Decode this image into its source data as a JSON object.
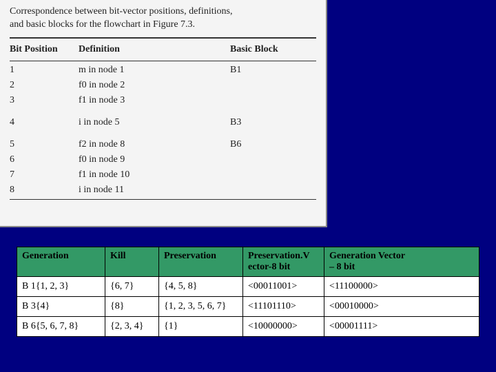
{
  "scan": {
    "title_line1": "Correspondence between bit-vector positions, definitions,",
    "title_line2": "and basic blocks for the flowchart in Figure 7.3.",
    "headers": {
      "bit": "Bit Position",
      "def": "Definition",
      "bb": "Basic Block"
    },
    "rows": [
      {
        "bit": "1",
        "def": "m in node 1",
        "bb": "B1"
      },
      {
        "bit": "2",
        "def": "f0 in node 2",
        "bb": ""
      },
      {
        "bit": "3",
        "def": "f1 in node 3",
        "bb": ""
      },
      {
        "gap": true
      },
      {
        "bit": "4",
        "def": "i in node 5",
        "bb": "B3"
      },
      {
        "gap": true
      },
      {
        "bit": "5",
        "def": "f2 in node 8",
        "bb": "B6"
      },
      {
        "bit": "6",
        "def": "f0 in node 9",
        "bb": ""
      },
      {
        "bit": "7",
        "def": "f1 in node 10",
        "bb": ""
      },
      {
        "bit": "8",
        "def": "i in node 11",
        "bb": ""
      }
    ]
  },
  "table": {
    "headers": {
      "gen": "Generation",
      "kill": "Kill",
      "pres": "Preservation",
      "presv_l1": "Preservation.V",
      "presv_l2": "ector-8 bit",
      "genv_l1": "Generation Vector",
      "genv_l2": "– 8 bit"
    },
    "rows": [
      {
        "gen": "B 1{1, 2, 3}",
        "kill": "{6, 7}",
        "pres": "{4, 5, 8}",
        "presv": "<00011001>",
        "genv": "<11100000>"
      },
      {
        "gen": "B 3{4}",
        "kill": "{8}",
        "pres": "{1, 2, 3, 5, 6, 7}",
        "presv": "<11101110>",
        "genv": "<00010000>"
      },
      {
        "gen": "B 6{5, 6, 7, 8}",
        "kill": "{2, 3, 4}",
        "pres": "{1}",
        "presv": "<10000000>",
        "genv": "<00001111>"
      }
    ]
  },
  "colors": {
    "bg": "#000080",
    "header_bg": "#339966",
    "cell_bg": "#ffffff",
    "scan_bg": "#f4f4f4"
  }
}
